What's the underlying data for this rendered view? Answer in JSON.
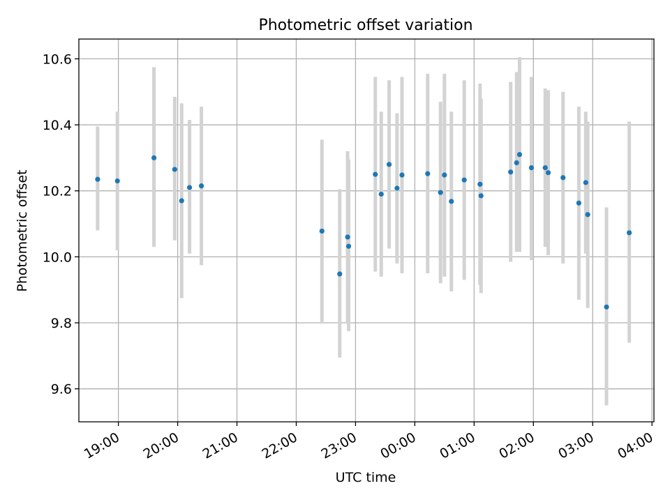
{
  "chart_data": {
    "type": "scatter",
    "title": "Photometric offset variation",
    "xlabel": "UTC time",
    "ylabel": "Photometric offset",
    "x_axis_kind": "time of day (UTC, wraps past midnight)",
    "xlim": [
      "18:20",
      "04:02"
    ],
    "ylim": [
      9.5,
      10.66
    ],
    "grid": true,
    "x_ticks": [
      "19:00",
      "20:00",
      "21:00",
      "22:00",
      "23:00",
      "00:00",
      "01:00",
      "02:00",
      "03:00",
      "04:00"
    ],
    "y_ticks": [
      "9.6",
      "9.8",
      "10.0",
      "10.2",
      "10.4",
      "10.6"
    ],
    "y_tick_values": [
      9.6,
      9.8,
      10.0,
      10.2,
      10.4,
      10.6
    ],
    "marker_color": "#1f77b4",
    "errorbar_color": "#d3d3d3",
    "points": [
      {
        "x": "18:39",
        "y": 10.235,
        "lo": 10.08,
        "hi": 10.395
      },
      {
        "x": "18:59",
        "y": 10.23,
        "lo": 10.02,
        "hi": 10.44
      },
      {
        "x": "19:36",
        "y": 10.3,
        "lo": 10.03,
        "hi": 10.575
      },
      {
        "x": "19:57",
        "y": 10.265,
        "lo": 10.05,
        "hi": 10.485
      },
      {
        "x": "20:04",
        "y": 10.17,
        "lo": 9.875,
        "hi": 10.465
      },
      {
        "x": "20:12",
        "y": 10.21,
        "lo": 10.01,
        "hi": 10.415
      },
      {
        "x": "20:24",
        "y": 10.215,
        "lo": 9.975,
        "hi": 10.455
      },
      {
        "x": "22:26",
        "y": 10.078,
        "lo": 9.8,
        "hi": 10.355
      },
      {
        "x": "22:44",
        "y": 9.948,
        "lo": 9.695,
        "hi": 10.205
      },
      {
        "x": "22:52",
        "y": 10.06,
        "lo": 9.8,
        "hi": 10.32
      },
      {
        "x": "22:53",
        "y": 10.032,
        "lo": 9.775,
        "hi": 10.295
      },
      {
        "x": "23:20",
        "y": 10.25,
        "lo": 9.955,
        "hi": 10.545
      },
      {
        "x": "23:26",
        "y": 10.19,
        "lo": 9.94,
        "hi": 10.44
      },
      {
        "x": "23:34",
        "y": 10.28,
        "lo": 10.025,
        "hi": 10.535
      },
      {
        "x": "23:42",
        "y": 10.208,
        "lo": 9.98,
        "hi": 10.435
      },
      {
        "x": "23:47",
        "y": 10.248,
        "lo": 9.95,
        "hi": 10.545
      },
      {
        "x": "00:13",
        "y": 10.252,
        "lo": 9.95,
        "hi": 10.555
      },
      {
        "x": "00:26",
        "y": 10.195,
        "lo": 9.92,
        "hi": 10.47
      },
      {
        "x": "00:30",
        "y": 10.248,
        "lo": 9.94,
        "hi": 10.555
      },
      {
        "x": "00:37",
        "y": 10.168,
        "lo": 9.895,
        "hi": 10.44
      },
      {
        "x": "00:50",
        "y": 10.233,
        "lo": 9.93,
        "hi": 10.535
      },
      {
        "x": "01:06",
        "y": 10.22,
        "lo": 9.915,
        "hi": 10.525
      },
      {
        "x": "01:07",
        "y": 10.185,
        "lo": 9.89,
        "hi": 10.48
      },
      {
        "x": "01:37",
        "y": 10.257,
        "lo": 9.985,
        "hi": 10.53
      },
      {
        "x": "01:43",
        "y": 10.285,
        "lo": 10.015,
        "hi": 10.56
      },
      {
        "x": "01:46",
        "y": 10.31,
        "lo": 10.015,
        "hi": 10.605
      },
      {
        "x": "01:58",
        "y": 10.27,
        "lo": 9.99,
        "hi": 10.545
      },
      {
        "x": "02:12",
        "y": 10.27,
        "lo": 10.03,
        "hi": 10.51
      },
      {
        "x": "02:15",
        "y": 10.255,
        "lo": 10.005,
        "hi": 10.505
      },
      {
        "x": "02:30",
        "y": 10.24,
        "lo": 9.98,
        "hi": 10.5
      },
      {
        "x": "02:46",
        "y": 10.163,
        "lo": 9.87,
        "hi": 10.455
      },
      {
        "x": "02:53",
        "y": 10.225,
        "lo": 10.01,
        "hi": 10.44
      },
      {
        "x": "02:55",
        "y": 10.128,
        "lo": 9.845,
        "hi": 10.41
      },
      {
        "x": "03:14",
        "y": 9.848,
        "lo": 9.55,
        "hi": 10.15
      },
      {
        "x": "03:37",
        "y": 10.073,
        "lo": 9.74,
        "hi": 10.41
      }
    ]
  }
}
